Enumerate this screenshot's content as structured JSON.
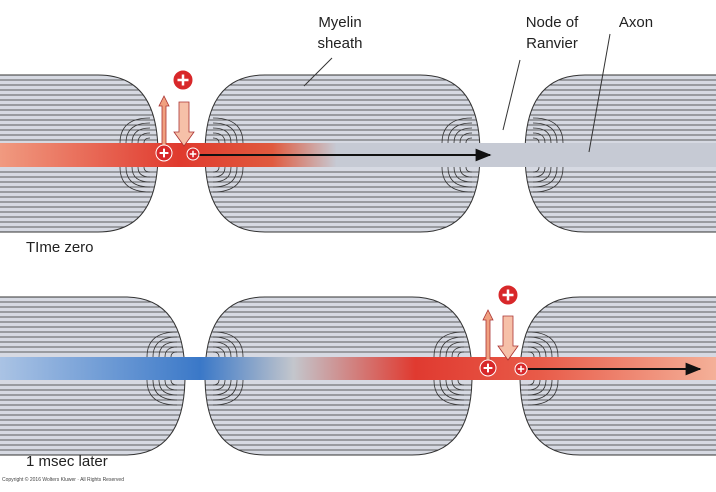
{
  "labels": {
    "myelin_sheath": [
      "Myelin",
      "sheath"
    ],
    "node_of_ranvier": [
      "Node of",
      "Ranvier"
    ],
    "axon": "Axon"
  },
  "panels": [
    "TIme zero",
    "1 msec later"
  ],
  "copyright": "Copyright © 2016 Wolters Kluwer · All Rights Reserved"
}
